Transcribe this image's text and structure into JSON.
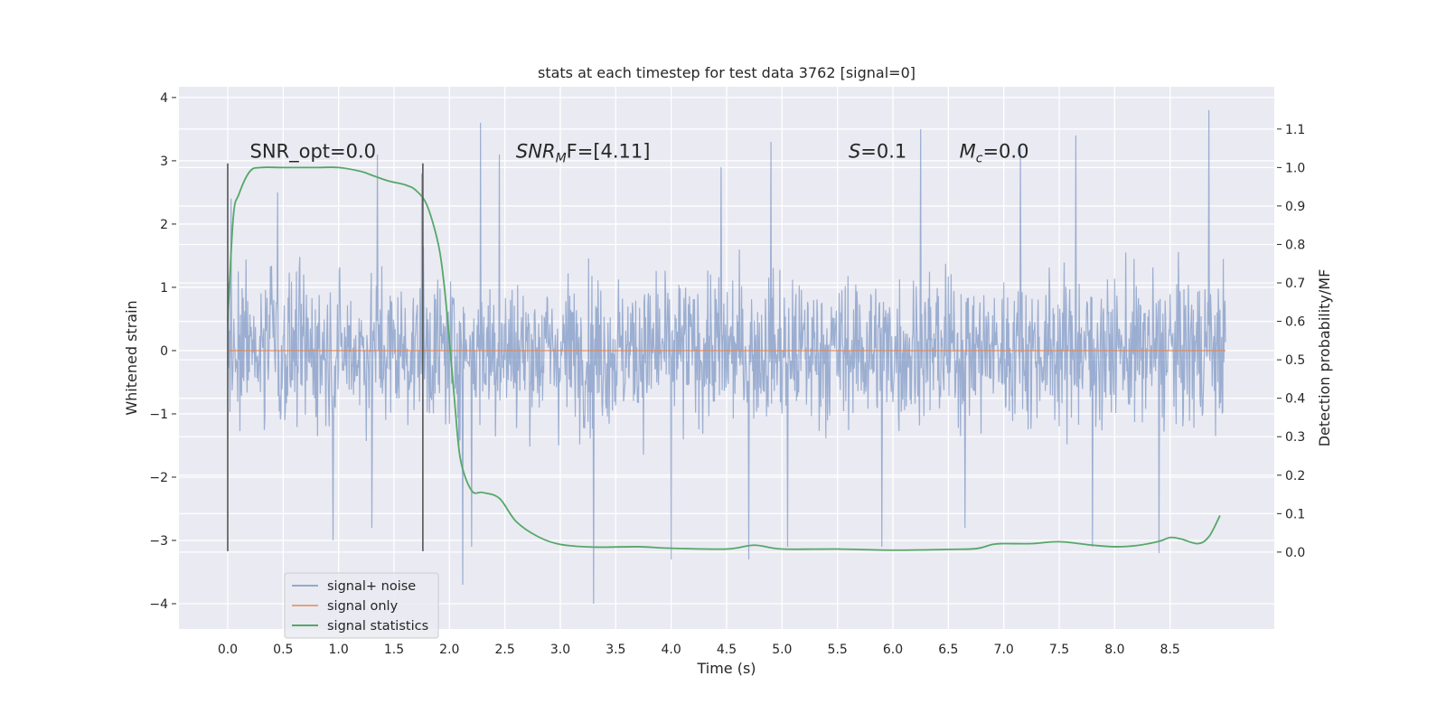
{
  "chart_data": {
    "type": "line",
    "title": "stats at each timestep for test data 3762 [signal=0]",
    "xlabel": "Time (s)",
    "ylabel": "Whitened strain",
    "ylabel_right": "Detection probability/MF",
    "xlim": [
      -0.44,
      9.44
    ],
    "ylim": [
      -4.4,
      4.17
    ],
    "ylim_right": [
      -0.2,
      1.21
    ],
    "x_ticks": [
      "0.0",
      "0.5",
      "1.0",
      "1.5",
      "2.0",
      "2.5",
      "3.0",
      "3.5",
      "4.0",
      "4.5",
      "5.0",
      "5.5",
      "6.0",
      "6.5",
      "7.0",
      "7.5",
      "8.0",
      "8.5"
    ],
    "x_tick_values": [
      0,
      0.5,
      1,
      1.5,
      2,
      2.5,
      3,
      3.5,
      4,
      4.5,
      5,
      5.5,
      6,
      6.5,
      7,
      7.5,
      8,
      8.5
    ],
    "y_ticks": [
      "−4",
      "−3",
      "−2",
      "−1",
      "0",
      "1",
      "2",
      "3",
      "4"
    ],
    "y_tick_values": [
      -4,
      -3,
      -2,
      -1,
      0,
      1,
      2,
      3,
      4
    ],
    "y_right_ticks": [
      "0.0",
      "0.1",
      "0.2",
      "0.3",
      "0.4",
      "0.5",
      "0.6",
      "0.7",
      "0.8",
      "0.9",
      "1.0",
      "1.1"
    ],
    "y_right_tick_values": [
      0,
      0.1,
      0.2,
      0.3,
      0.4,
      0.5,
      0.6,
      0.7,
      0.8,
      0.9,
      1.0,
      1.1
    ],
    "grid": true,
    "legend_position": "lower-left",
    "series": [
      {
        "name": "signal+ noise",
        "color": "#4c72b0",
        "axis": "left",
        "x_range": [
          0,
          9.0
        ],
        "approx_amplitude_range": [
          -4.0,
          3.8
        ],
        "peaks": [
          {
            "x": 0.03,
            "y": 2.4
          },
          {
            "x": 0.45,
            "y": 2.5
          },
          {
            "x": 1.35,
            "y": 3.1
          },
          {
            "x": 1.75,
            "y": 2.8
          },
          {
            "x": 2.28,
            "y": 3.6
          },
          {
            "x": 2.45,
            "y": 3.1
          },
          {
            "x": 4.45,
            "y": 2.9
          },
          {
            "x": 4.9,
            "y": 3.3
          },
          {
            "x": 6.25,
            "y": 3.5
          },
          {
            "x": 7.15,
            "y": 3.2
          },
          {
            "x": 7.65,
            "y": 3.4
          },
          {
            "x": 8.85,
            "y": 3.8
          }
        ],
        "troughs": [
          {
            "x": 0.95,
            "y": -3.0
          },
          {
            "x": 1.3,
            "y": -2.8
          },
          {
            "x": 2.12,
            "y": -3.7
          },
          {
            "x": 2.2,
            "y": -3.1
          },
          {
            "x": 3.3,
            "y": -4.0
          },
          {
            "x": 4.0,
            "y": -3.3
          },
          {
            "x": 4.7,
            "y": -3.3
          },
          {
            "x": 5.05,
            "y": -3.1
          },
          {
            "x": 5.9,
            "y": -3.1
          },
          {
            "x": 6.65,
            "y": -2.8
          },
          {
            "x": 7.8,
            "y": -3.1
          },
          {
            "x": 8.4,
            "y": -3.2
          }
        ]
      },
      {
        "name": "signal only",
        "color": "#dd8452",
        "axis": "left",
        "x": [
          0,
          9.0
        ],
        "y": [
          0,
          0
        ]
      },
      {
        "name": "signal statistics",
        "color": "#55a868",
        "axis": "right",
        "x": [
          0.0,
          0.05,
          0.1,
          0.2,
          0.3,
          0.5,
          0.8,
          1.0,
          1.2,
          1.3,
          1.45,
          1.6,
          1.7,
          1.8,
          1.9,
          1.95,
          2.0,
          2.05,
          2.1,
          2.2,
          2.3,
          2.45,
          2.6,
          2.8,
          3.0,
          3.3,
          3.7,
          4.0,
          4.5,
          4.75,
          5.0,
          5.5,
          6.0,
          6.5,
          6.75,
          6.9,
          7.0,
          7.25,
          7.5,
          7.8,
          8.0,
          8.2,
          8.4,
          8.5,
          8.6,
          8.75,
          8.85,
          8.95
        ],
        "y": [
          0.6,
          0.87,
          0.93,
          0.99,
          1.0,
          1.0,
          1.0,
          1.0,
          0.99,
          0.98,
          0.965,
          0.955,
          0.94,
          0.9,
          0.8,
          0.7,
          0.55,
          0.38,
          0.24,
          0.16,
          0.155,
          0.14,
          0.08,
          0.04,
          0.02,
          0.013,
          0.014,
          0.01,
          0.008,
          0.018,
          0.008,
          0.008,
          0.005,
          0.007,
          0.009,
          0.02,
          0.022,
          0.022,
          0.027,
          0.018,
          0.014,
          0.017,
          0.028,
          0.038,
          0.034,
          0.022,
          0.04,
          0.095
        ]
      }
    ],
    "vertical_markers": [
      {
        "x": 0.0,
        "y_range": [
          -3.17,
          2.96
        ]
      },
      {
        "x": 1.76,
        "y_range": [
          -3.17,
          2.96
        ]
      }
    ],
    "annotations": [
      {
        "prefix": "",
        "italic": "",
        "subscript": "",
        "suffix": "SNR_opt=0.0",
        "x": 0.2,
        "y": 3.05
      },
      {
        "prefix": "",
        "italic": "SNR",
        "subscript": "M",
        "suffix": "F=[4.11]",
        "x": 2.6,
        "y": 3.05
      },
      {
        "prefix": "",
        "italic": "S",
        "subscript": "",
        "suffix": "=0.1",
        "x": 5.6,
        "y": 3.05
      },
      {
        "prefix": "",
        "italic": "M",
        "subscript": "c",
        "suffix": "=0.0",
        "x": 6.6,
        "y": 3.05
      }
    ]
  }
}
